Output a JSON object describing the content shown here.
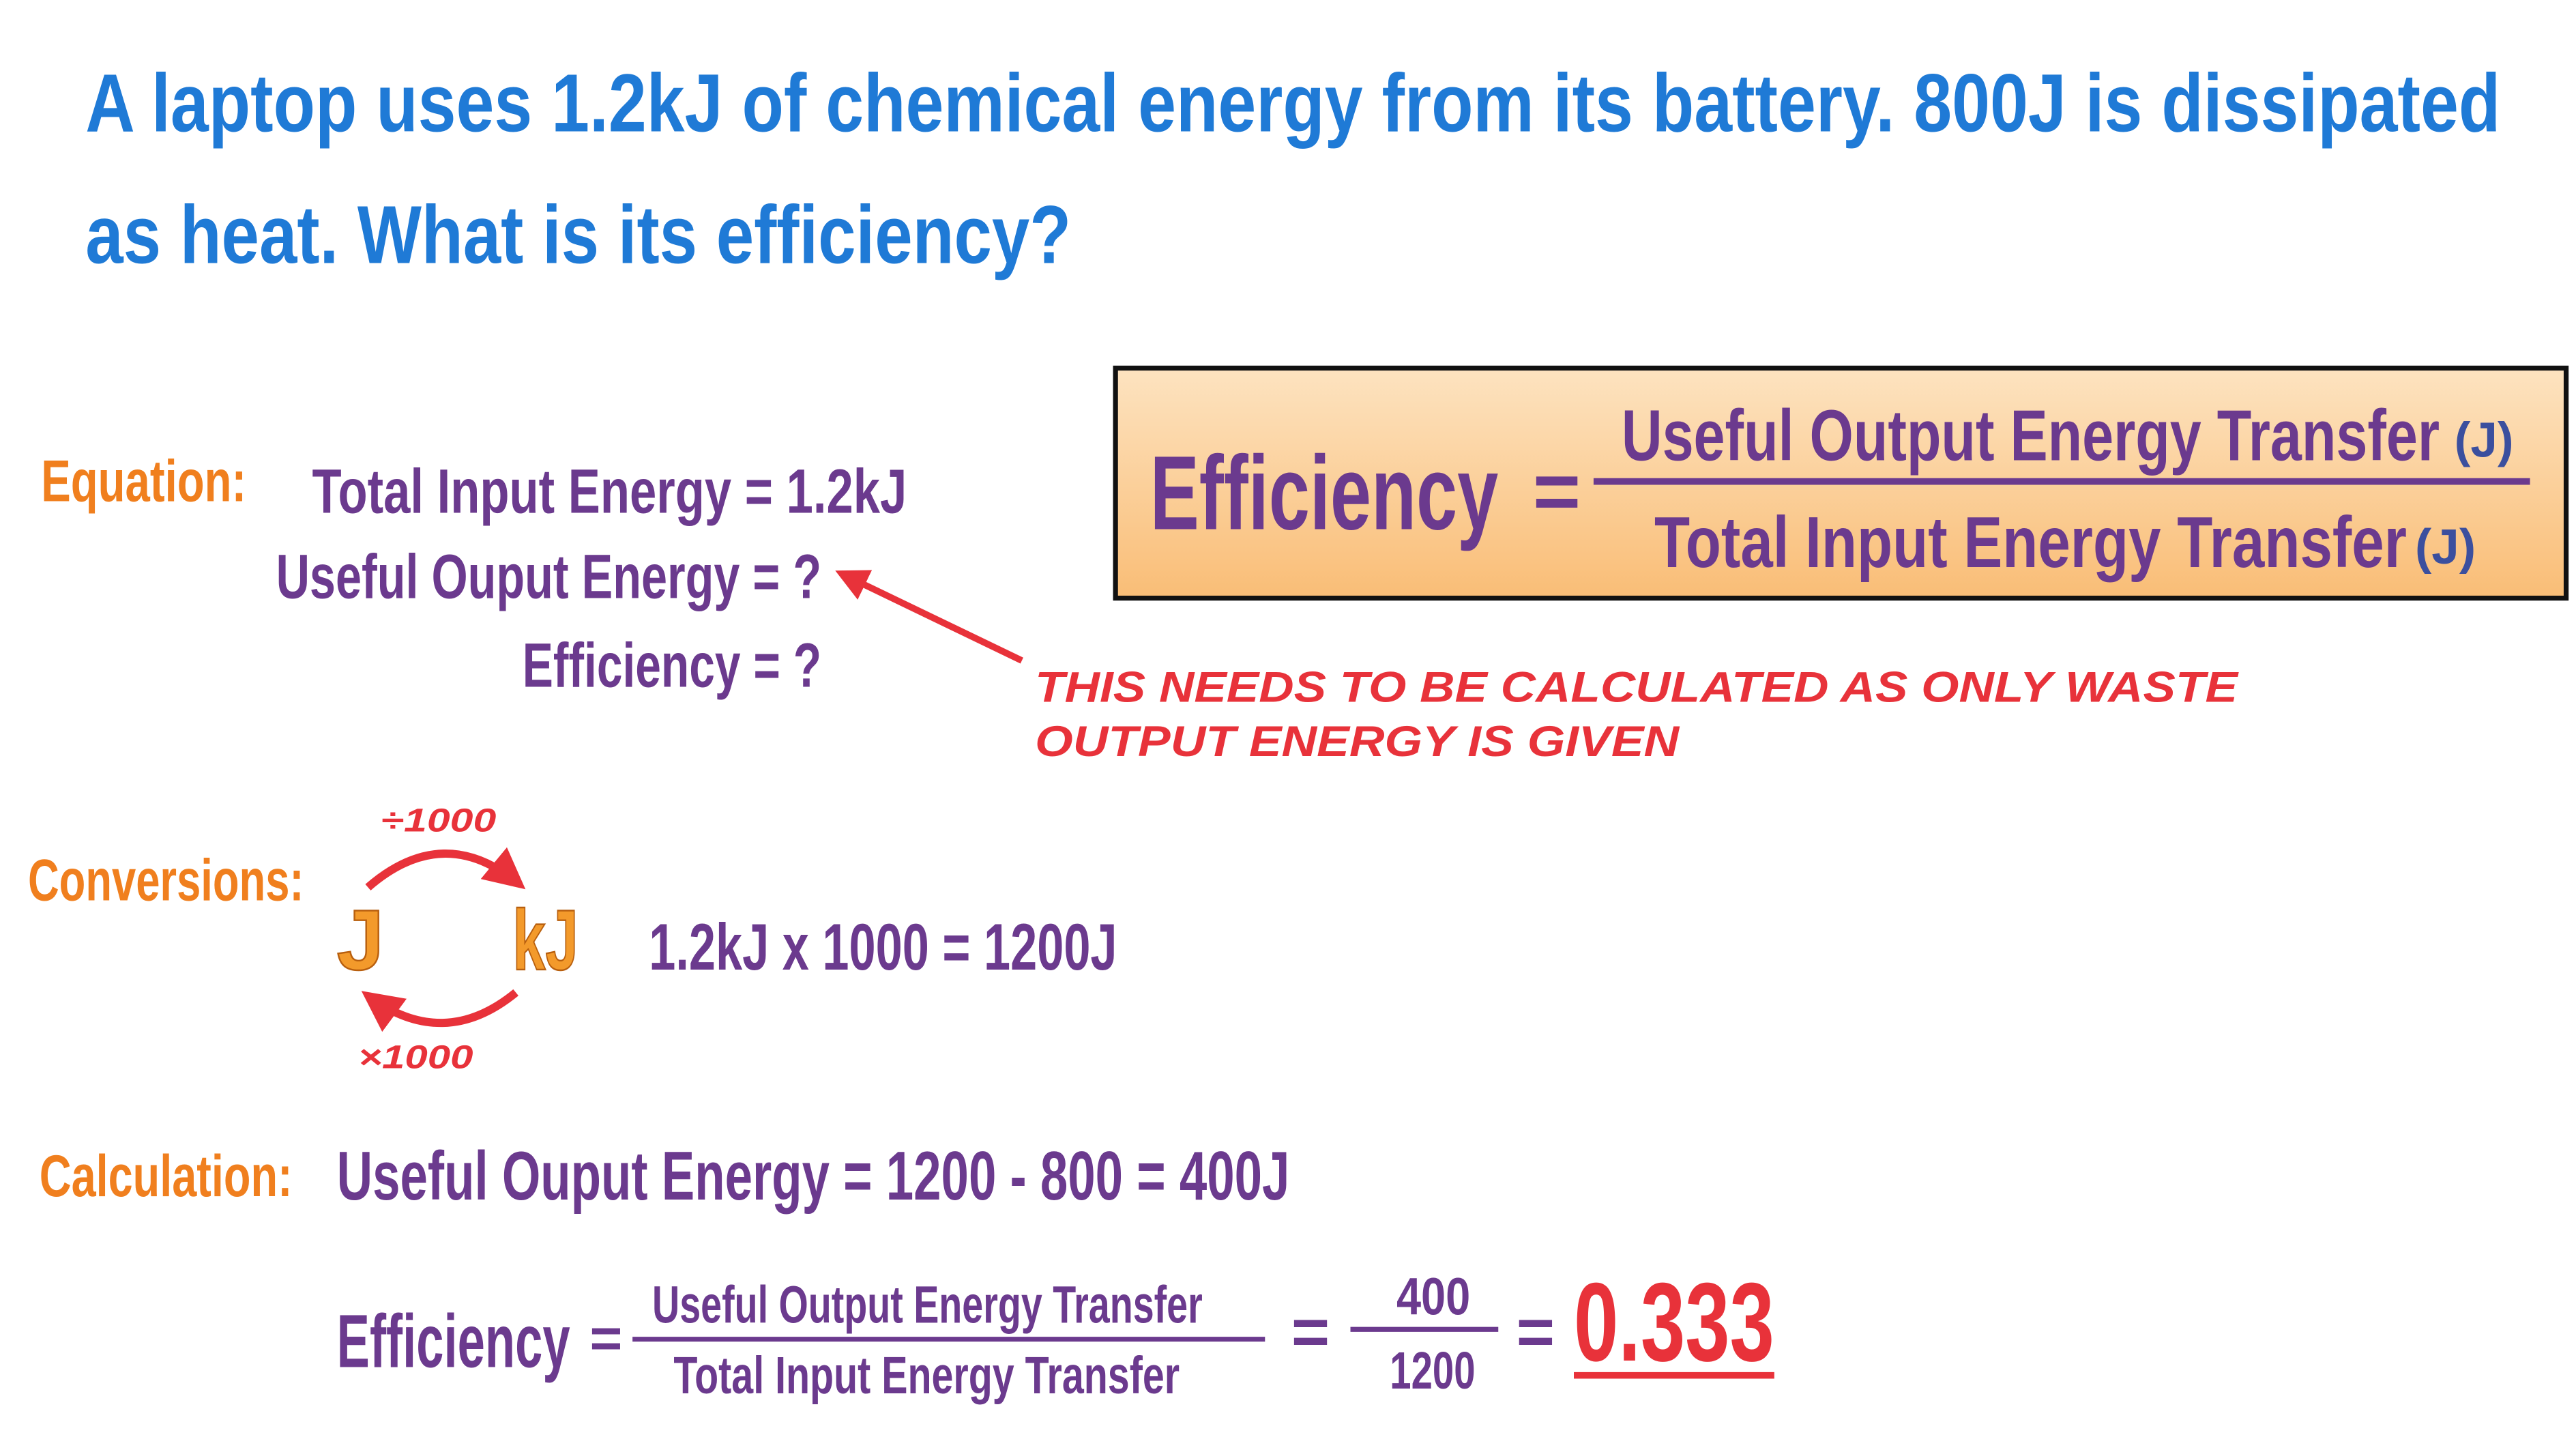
{
  "question": [
    "A laptop uses 1.2kJ of chemical energy from its battery. 800J is dissipated",
    "as heat. What is its efficiency?"
  ],
  "formula_box": {
    "lhs": "Efficiency",
    "equals": "=",
    "numerator": "Useful Output Energy Transfer",
    "numerator_unit": "(J)",
    "denominator": "Total Input Energy Transfer",
    "denominator_unit": "(J)"
  },
  "equation": {
    "label": "Equation:",
    "lines": [
      "Total Input Energy = 1.2kJ",
      "Useful Ouput Energy = ?",
      "Efficiency = ?"
    ],
    "note": [
      "THIS NEEDS TO BE CALCULATED AS ONLY WASTE",
      "OUTPUT ENERGY IS GIVEN"
    ]
  },
  "conversions": {
    "label": "Conversions:",
    "from": "J",
    "to": "kJ",
    "forward": "÷1000",
    "backward": "×1000",
    "worked": "1.2kJ x 1000 = 1200J"
  },
  "calculation": {
    "label": "Calculation:",
    "line": "Useful Ouput Energy = 1200 - 800 = 400J",
    "lhs": "Efficiency",
    "equals_1": "=",
    "numerator": "Useful Output Energy Transfer",
    "denominator": "Total Input Energy Transfer",
    "equals_2": "=",
    "value_numerator": "400",
    "value_denominator": "1200",
    "equals_3": "=",
    "result": "0.333"
  }
}
